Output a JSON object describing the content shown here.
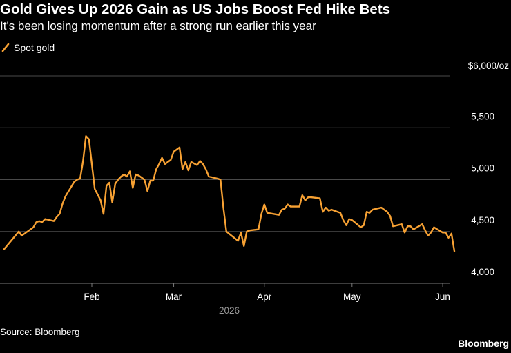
{
  "header": {
    "title": "Gold Gives Up 2026 Gain as US Jobs Boost Fed Hike Bets",
    "subtitle": "It's been losing momentum after a strong run earlier this year"
  },
  "legend": {
    "label": "Spot gold",
    "color": "#f7a133"
  },
  "footer": {
    "source": "Source: Bloomberg",
    "brand": "Bloomberg"
  },
  "chart_data": {
    "type": "line",
    "title": "Gold Gives Up 2026 Gain as US Jobs Boost Fed Hike Bets",
    "subtitle": "It's been losing momentum after a strong run earlier this year",
    "unit_label": "$6,000/oz",
    "ylim": [
      4000,
      6000
    ],
    "yticks": [
      4000,
      4500,
      5000,
      5500,
      6000
    ],
    "ytick_labels": [
      "4,000",
      "4,500",
      "5,000",
      "5,500",
      "$6,000/oz"
    ],
    "x_start": "2026-01-02",
    "x_end": "2026-06-05",
    "xticks": [
      {
        "date": "2026-02-01",
        "label": "Feb"
      },
      {
        "date": "2026-03-01",
        "label": "Mar"
      },
      {
        "date": "2026-04-01",
        "label": "Apr"
      },
      {
        "date": "2026-05-01",
        "label": "May"
      },
      {
        "date": "2026-06-01",
        "label": "Jun"
      }
    ],
    "year_label": "2026",
    "grid": true,
    "legend_position": "top-left",
    "series": [
      {
        "name": "Spot gold",
        "color": "#f7a133",
        "points": [
          [
            "2026-01-02",
            4330
          ],
          [
            "2026-01-07",
            4500
          ],
          [
            "2026-01-08",
            4460
          ],
          [
            "2026-01-09",
            4480
          ],
          [
            "2026-01-12",
            4540
          ],
          [
            "2026-01-13",
            4590
          ],
          [
            "2026-01-14",
            4600
          ],
          [
            "2026-01-15",
            4590
          ],
          [
            "2026-01-16",
            4620
          ],
          [
            "2026-01-19",
            4600
          ],
          [
            "2026-01-20",
            4640
          ],
          [
            "2026-01-21",
            4670
          ],
          [
            "2026-01-22",
            4770
          ],
          [
            "2026-01-23",
            4840
          ],
          [
            "2026-01-26",
            4980
          ],
          [
            "2026-01-27",
            5000
          ],
          [
            "2026-01-28",
            5010
          ],
          [
            "2026-01-29",
            5180
          ],
          [
            "2026-01-30",
            5420
          ],
          [
            "2026-01-31",
            5390
          ],
          [
            "2026-02-02",
            4910
          ],
          [
            "2026-02-04",
            4800
          ],
          [
            "2026-02-05",
            4670
          ],
          [
            "2026-02-06",
            4940
          ],
          [
            "2026-02-07",
            4970
          ],
          [
            "2026-02-08",
            4780
          ],
          [
            "2026-02-09",
            4960
          ],
          [
            "2026-02-10",
            5000
          ],
          [
            "2026-02-11",
            5030
          ],
          [
            "2026-02-12",
            5050
          ],
          [
            "2026-02-13",
            5030
          ],
          [
            "2026-02-14",
            5080
          ],
          [
            "2026-02-15",
            4920
          ],
          [
            "2026-02-16",
            5050
          ],
          [
            "2026-02-17",
            5040
          ],
          [
            "2026-02-18",
            5020
          ],
          [
            "2026-02-19",
            5000
          ],
          [
            "2026-02-20",
            4890
          ],
          [
            "2026-02-21",
            4990
          ],
          [
            "2026-02-22",
            4990
          ],
          [
            "2026-02-23",
            5100
          ],
          [
            "2026-02-24",
            5150
          ],
          [
            "2026-02-25",
            5210
          ],
          [
            "2026-02-26",
            5150
          ],
          [
            "2026-02-27",
            5170
          ],
          [
            "2026-02-28",
            5190
          ],
          [
            "2026-03-01",
            5270
          ],
          [
            "2026-03-02",
            5290
          ],
          [
            "2026-03-03",
            5310
          ],
          [
            "2026-03-04",
            5100
          ],
          [
            "2026-03-05",
            5170
          ],
          [
            "2026-03-06",
            5090
          ],
          [
            "2026-03-07",
            5170
          ],
          [
            "2026-03-09",
            5140
          ],
          [
            "2026-03-10",
            5180
          ],
          [
            "2026-03-11",
            5150
          ],
          [
            "2026-03-12",
            5100
          ],
          [
            "2026-03-13",
            5030
          ],
          [
            "2026-03-16",
            5010
          ],
          [
            "2026-03-17",
            5000
          ],
          [
            "2026-03-18",
            4730
          ],
          [
            "2026-03-19",
            4500
          ],
          [
            "2026-03-23",
            4410
          ],
          [
            "2026-03-24",
            4490
          ],
          [
            "2026-03-25",
            4360
          ],
          [
            "2026-03-26",
            4500
          ],
          [
            "2026-03-27",
            4510
          ],
          [
            "2026-03-30",
            4520
          ],
          [
            "2026-03-31",
            4670
          ],
          [
            "2026-04-01",
            4760
          ],
          [
            "2026-04-02",
            4680
          ],
          [
            "2026-04-06",
            4660
          ],
          [
            "2026-04-07",
            4710
          ],
          [
            "2026-04-08",
            4720
          ],
          [
            "2026-04-09",
            4760
          ],
          [
            "2026-04-10",
            4740
          ],
          [
            "2026-04-13",
            4740
          ],
          [
            "2026-04-14",
            4850
          ],
          [
            "2026-04-15",
            4800
          ],
          [
            "2026-04-16",
            4830
          ],
          [
            "2026-04-17",
            4830
          ],
          [
            "2026-04-20",
            4820
          ],
          [
            "2026-04-21",
            4690
          ],
          [
            "2026-04-22",
            4730
          ],
          [
            "2026-04-23",
            4700
          ],
          [
            "2026-04-24",
            4710
          ],
          [
            "2026-04-27",
            4680
          ],
          [
            "2026-04-28",
            4610
          ],
          [
            "2026-04-29",
            4560
          ],
          [
            "2026-04-30",
            4620
          ],
          [
            "2026-05-01",
            4610
          ],
          [
            "2026-05-04",
            4540
          ],
          [
            "2026-05-05",
            4560
          ],
          [
            "2026-05-06",
            4690
          ],
          [
            "2026-05-07",
            4680
          ],
          [
            "2026-05-08",
            4710
          ],
          [
            "2026-05-11",
            4730
          ],
          [
            "2026-05-12",
            4710
          ],
          [
            "2026-05-13",
            4690
          ],
          [
            "2026-05-14",
            4650
          ],
          [
            "2026-05-15",
            4550
          ],
          [
            "2026-05-18",
            4570
          ],
          [
            "2026-05-19",
            4490
          ],
          [
            "2026-05-20",
            4550
          ],
          [
            "2026-05-21",
            4550
          ],
          [
            "2026-05-22",
            4520
          ],
          [
            "2026-05-25",
            4570
          ],
          [
            "2026-05-26",
            4510
          ],
          [
            "2026-05-27",
            4460
          ],
          [
            "2026-05-28",
            4490
          ],
          [
            "2026-05-29",
            4540
          ],
          [
            "2026-06-01",
            4490
          ],
          [
            "2026-06-02",
            4490
          ],
          [
            "2026-06-03",
            4440
          ],
          [
            "2026-06-04",
            4480
          ],
          [
            "2026-06-05",
            4310
          ]
        ]
      }
    ]
  }
}
